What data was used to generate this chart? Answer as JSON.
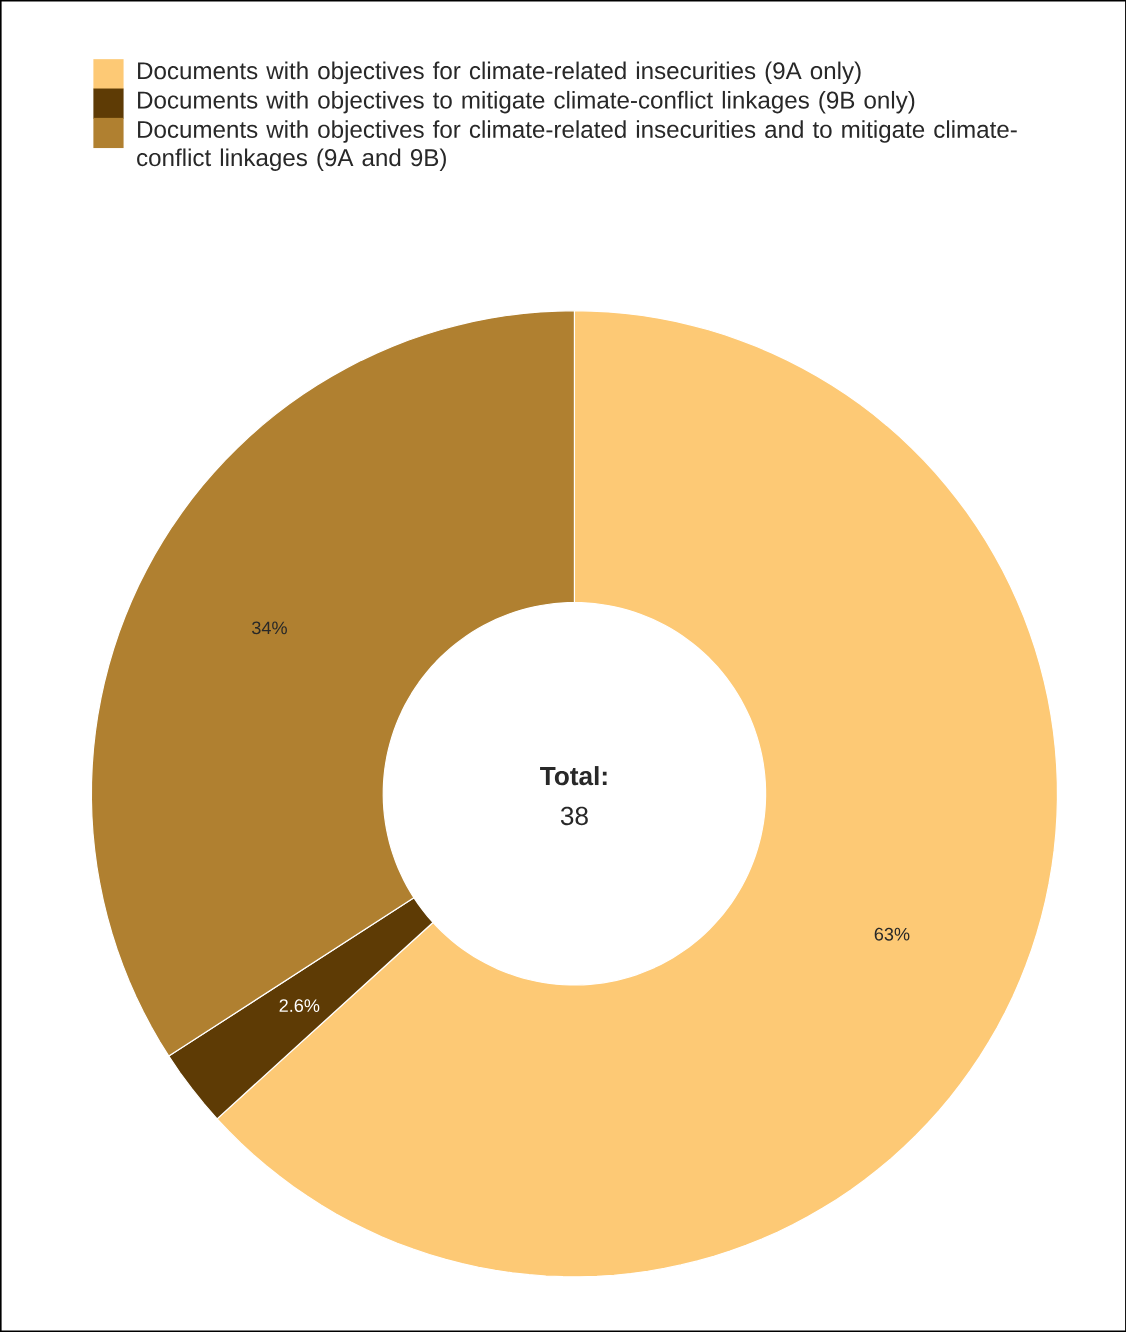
{
  "chart_data": {
    "type": "donut",
    "categories": [
      "Documents with objectives for climate-related insecurities (9A only)",
      "Documents with objectives to mitigate climate-conflict linkages (9B only)",
      "Documents with objectives for climate-related insecurities and to mitigate climate-conflict linkages (9A and 9B)"
    ],
    "values": [
      63,
      2.6,
      34
    ],
    "value_labels": [
      "63%",
      "2.6%",
      "34%"
    ],
    "colors": [
      "#fdc975",
      "#5e3b05",
      "#b08030"
    ],
    "legend": "top",
    "annotations": [
      "Total:",
      "38"
    ]
  }
}
